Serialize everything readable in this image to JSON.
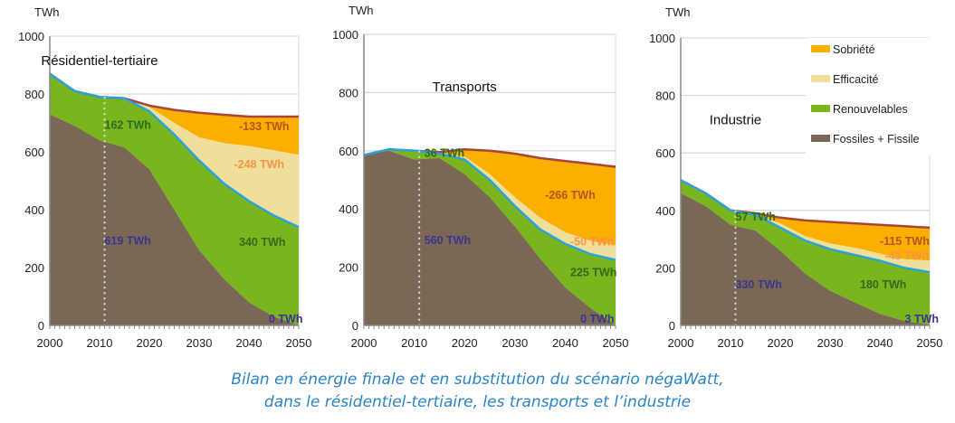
{
  "chart_data": [
    {
      "type": "area",
      "title": "Résidentiel-tertiaire",
      "ylabel": "TWh",
      "ylim": [
        0,
        1000
      ],
      "yticks": [
        "0",
        "200",
        "400",
        "600",
        "800",
        "1000"
      ],
      "xticks": [
        "2000",
        "2010",
        "2020",
        "2030",
        "2040",
        "2050"
      ],
      "x": [
        2000,
        2005,
        2010,
        2015,
        2020,
        2025,
        2030,
        2035,
        2040,
        2045,
        2050
      ],
      "fossiles": [
        730,
        690,
        640,
        615,
        540,
        400,
        260,
        160,
        80,
        30,
        0
      ],
      "total_renouvelables": [
        870,
        810,
        790,
        785,
        740,
        660,
        570,
        490,
        430,
        380,
        340
      ],
      "total_efficacite": [
        870,
        810,
        790,
        785,
        755,
        700,
        650,
        630,
        620,
        605,
        590
      ],
      "tendanciel": [
        870,
        810,
        790,
        785,
        760,
        745,
        735,
        728,
        722,
        722,
        722
      ],
      "annotations": [
        {
          "text": "162 TWh",
          "x": 2011,
          "y": 670,
          "color": "#2e6b1f"
        },
        {
          "text": "619 TWh",
          "x": 2011,
          "y": 270,
          "color": "#3a3590"
        },
        {
          "text": "-133 TWh",
          "x": 2038,
          "y": 665,
          "color": "#b4541a"
        },
        {
          "text": "-248 TWh",
          "x": 2037,
          "y": 535,
          "color": "#f7924a"
        },
        {
          "text": "340 TWh",
          "x": 2038,
          "y": 265,
          "color": "#2e6b1f"
        },
        {
          "text": "0 TWh",
          "x": 2044,
          "y": 0,
          "color": "#3a3590"
        }
      ]
    },
    {
      "type": "area",
      "title": "Transports",
      "ylabel": "TWh",
      "ylim": [
        0,
        1000
      ],
      "yticks": [
        "0",
        "200",
        "400",
        "600",
        "800",
        "1000"
      ],
      "xticks": [
        "2000",
        "2010",
        "2020",
        "2030",
        "2040",
        "2050"
      ],
      "x": [
        2000,
        2005,
        2010,
        2015,
        2020,
        2025,
        2030,
        2035,
        2040,
        2045,
        2050
      ],
      "fossiles": [
        585,
        600,
        570,
        575,
        520,
        440,
        340,
        230,
        130,
        60,
        0
      ],
      "total_renouvelables": [
        585,
        605,
        600,
        590,
        570,
        500,
        410,
        330,
        280,
        245,
        225
      ],
      "total_efficacite": [
        585,
        605,
        600,
        592,
        580,
        520,
        440,
        370,
        320,
        290,
        275
      ],
      "tendanciel": [
        585,
        605,
        600,
        595,
        605,
        600,
        590,
        575,
        565,
        555,
        545
      ],
      "annotations": [
        {
          "text": "36 TWh",
          "x": 2012,
          "y": 570,
          "color": "#2e6b1f"
        },
        {
          "text": "560 TWh",
          "x": 2012,
          "y": 270,
          "color": "#3a3590"
        },
        {
          "text": "-266 TWh",
          "x": 2036,
          "y": 425,
          "color": "#b4541a"
        },
        {
          "text": "-50 TWh",
          "x": 2041,
          "y": 265,
          "color": "#f7924a"
        },
        {
          "text": "225 TWh",
          "x": 2041,
          "y": 160,
          "color": "#2e6b1f"
        },
        {
          "text": "0 TWh",
          "x": 2043,
          "y": 0,
          "color": "#3a3590"
        }
      ]
    },
    {
      "type": "area",
      "title": "Industrie",
      "ylabel": "TWh",
      "ylim": [
        0,
        1000
      ],
      "yticks": [
        "0",
        "200",
        "400",
        "600",
        "800",
        "1000"
      ],
      "xticks": [
        "2000",
        "2010",
        "2020",
        "2030",
        "2040",
        "2050"
      ],
      "x": [
        2000,
        2005,
        2010,
        2015,
        2020,
        2025,
        2030,
        2035,
        2040,
        2045,
        2050
      ],
      "fossiles": [
        460,
        415,
        350,
        330,
        260,
        180,
        120,
        80,
        40,
        15,
        3
      ],
      "total_renouvelables": [
        505,
        460,
        400,
        385,
        340,
        295,
        265,
        245,
        225,
        200,
        185
      ],
      "total_efficacite": [
        505,
        460,
        400,
        385,
        355,
        310,
        285,
        270,
        250,
        230,
        225
      ],
      "tendanciel": [
        505,
        460,
        400,
        390,
        375,
        365,
        360,
        355,
        350,
        345,
        340
      ],
      "annotations": [
        {
          "text": "57 TWh",
          "x": 2011,
          "y": 355,
          "color": "#2e6b1f"
        },
        {
          "text": "330 TWh",
          "x": 2011,
          "y": 120,
          "color": "#3a3590"
        },
        {
          "text": "-115 TWh",
          "x": 2040,
          "y": 270,
          "color": "#b4541a"
        },
        {
          "text": "-43 TWh",
          "x": 2041,
          "y": 220,
          "color": "#f7924a"
        },
        {
          "text": "180 TWh",
          "x": 2036,
          "y": 120,
          "color": "#2e6b1f"
        },
        {
          "text": "3 TWh",
          "x": 2045,
          "y": 0,
          "color": "#3a3590"
        }
      ]
    }
  ],
  "legend": [
    {
      "label": "Sobriété",
      "color": "#f9b000"
    },
    {
      "label": "Efficacité",
      "color": "#f0df9a"
    },
    {
      "label": "Renouvelables",
      "color": "#7ab51d"
    },
    {
      "label": "Fossiles + Fissile",
      "color": "#7a6754"
    }
  ],
  "colors": {
    "sobriete": "#f9b000",
    "efficacite": "#f0df9a",
    "renouvelables": "#7ab51d",
    "fossiles": "#7a6754",
    "tendanciel_line": "#a8453a",
    "consommation_line": "#29a3dc"
  },
  "caption": {
    "line1": "Bilan en énergie finale et en substitution du scénario négaWatt,",
    "line2": "dans le résidentiel-tertiaire, les transports et l’industrie"
  }
}
